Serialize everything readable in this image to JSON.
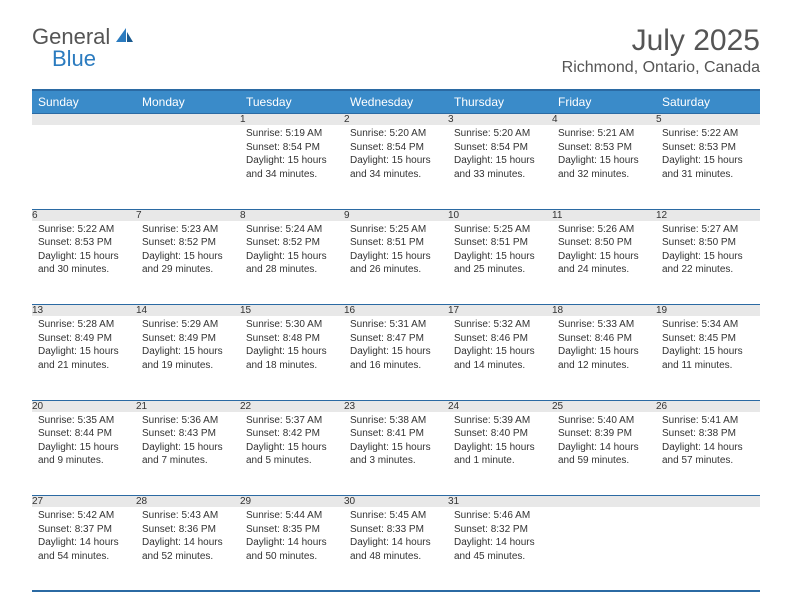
{
  "logo": {
    "general": "General",
    "blue": "Blue"
  },
  "title": "July 2025",
  "location": "Richmond, Ontario, Canada",
  "colors": {
    "header_bg": "#3a8bc9",
    "border": "#2b6aa3",
    "daynum_bg": "#e8e8e8",
    "text": "#333333",
    "title_text": "#555555"
  },
  "dayNames": [
    "Sunday",
    "Monday",
    "Tuesday",
    "Wednesday",
    "Thursday",
    "Friday",
    "Saturday"
  ],
  "weeks": [
    [
      null,
      null,
      {
        "n": "1",
        "sr": "5:19 AM",
        "ss": "8:54 PM",
        "dl": "15 hours and 34 minutes."
      },
      {
        "n": "2",
        "sr": "5:20 AM",
        "ss": "8:54 PM",
        "dl": "15 hours and 34 minutes."
      },
      {
        "n": "3",
        "sr": "5:20 AM",
        "ss": "8:54 PM",
        "dl": "15 hours and 33 minutes."
      },
      {
        "n": "4",
        "sr": "5:21 AM",
        "ss": "8:53 PM",
        "dl": "15 hours and 32 minutes."
      },
      {
        "n": "5",
        "sr": "5:22 AM",
        "ss": "8:53 PM",
        "dl": "15 hours and 31 minutes."
      }
    ],
    [
      {
        "n": "6",
        "sr": "5:22 AM",
        "ss": "8:53 PM",
        "dl": "15 hours and 30 minutes."
      },
      {
        "n": "7",
        "sr": "5:23 AM",
        "ss": "8:52 PM",
        "dl": "15 hours and 29 minutes."
      },
      {
        "n": "8",
        "sr": "5:24 AM",
        "ss": "8:52 PM",
        "dl": "15 hours and 28 minutes."
      },
      {
        "n": "9",
        "sr": "5:25 AM",
        "ss": "8:51 PM",
        "dl": "15 hours and 26 minutes."
      },
      {
        "n": "10",
        "sr": "5:25 AM",
        "ss": "8:51 PM",
        "dl": "15 hours and 25 minutes."
      },
      {
        "n": "11",
        "sr": "5:26 AM",
        "ss": "8:50 PM",
        "dl": "15 hours and 24 minutes."
      },
      {
        "n": "12",
        "sr": "5:27 AM",
        "ss": "8:50 PM",
        "dl": "15 hours and 22 minutes."
      }
    ],
    [
      {
        "n": "13",
        "sr": "5:28 AM",
        "ss": "8:49 PM",
        "dl": "15 hours and 21 minutes."
      },
      {
        "n": "14",
        "sr": "5:29 AM",
        "ss": "8:49 PM",
        "dl": "15 hours and 19 minutes."
      },
      {
        "n": "15",
        "sr": "5:30 AM",
        "ss": "8:48 PM",
        "dl": "15 hours and 18 minutes."
      },
      {
        "n": "16",
        "sr": "5:31 AM",
        "ss": "8:47 PM",
        "dl": "15 hours and 16 minutes."
      },
      {
        "n": "17",
        "sr": "5:32 AM",
        "ss": "8:46 PM",
        "dl": "15 hours and 14 minutes."
      },
      {
        "n": "18",
        "sr": "5:33 AM",
        "ss": "8:46 PM",
        "dl": "15 hours and 12 minutes."
      },
      {
        "n": "19",
        "sr": "5:34 AM",
        "ss": "8:45 PM",
        "dl": "15 hours and 11 minutes."
      }
    ],
    [
      {
        "n": "20",
        "sr": "5:35 AM",
        "ss": "8:44 PM",
        "dl": "15 hours and 9 minutes."
      },
      {
        "n": "21",
        "sr": "5:36 AM",
        "ss": "8:43 PM",
        "dl": "15 hours and 7 minutes."
      },
      {
        "n": "22",
        "sr": "5:37 AM",
        "ss": "8:42 PM",
        "dl": "15 hours and 5 minutes."
      },
      {
        "n": "23",
        "sr": "5:38 AM",
        "ss": "8:41 PM",
        "dl": "15 hours and 3 minutes."
      },
      {
        "n": "24",
        "sr": "5:39 AM",
        "ss": "8:40 PM",
        "dl": "15 hours and 1 minute."
      },
      {
        "n": "25",
        "sr": "5:40 AM",
        "ss": "8:39 PM",
        "dl": "14 hours and 59 minutes."
      },
      {
        "n": "26",
        "sr": "5:41 AM",
        "ss": "8:38 PM",
        "dl": "14 hours and 57 minutes."
      }
    ],
    [
      {
        "n": "27",
        "sr": "5:42 AM",
        "ss": "8:37 PM",
        "dl": "14 hours and 54 minutes."
      },
      {
        "n": "28",
        "sr": "5:43 AM",
        "ss": "8:36 PM",
        "dl": "14 hours and 52 minutes."
      },
      {
        "n": "29",
        "sr": "5:44 AM",
        "ss": "8:35 PM",
        "dl": "14 hours and 50 minutes."
      },
      {
        "n": "30",
        "sr": "5:45 AM",
        "ss": "8:33 PM",
        "dl": "14 hours and 48 minutes."
      },
      {
        "n": "31",
        "sr": "5:46 AM",
        "ss": "8:32 PM",
        "dl": "14 hours and 45 minutes."
      },
      null,
      null
    ]
  ],
  "labels": {
    "sunrise": "Sunrise: ",
    "sunset": "Sunset: ",
    "daylight": "Daylight: "
  }
}
